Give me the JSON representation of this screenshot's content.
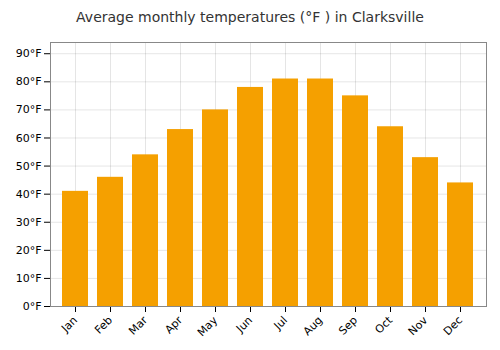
{
  "chart_data": {
    "type": "bar",
    "title": "Average monthly temperatures (°F ) in Clarksville",
    "categories": [
      "Jan",
      "Feb",
      "Mar",
      "Apr",
      "May",
      "Jun",
      "Jul",
      "Aug",
      "Sep",
      "Oct",
      "Nov",
      "Dec"
    ],
    "values": [
      41,
      46,
      54,
      63,
      70,
      78,
      81,
      81,
      75,
      64,
      53,
      44
    ],
    "color": "#F5A000",
    "ylim": [
      0,
      94
    ],
    "yticks": [
      {
        "value": 0,
        "label": "0°F"
      },
      {
        "value": 10,
        "label": "10°F"
      },
      {
        "value": 20,
        "label": "20°F"
      },
      {
        "value": 30,
        "label": "30°F"
      },
      {
        "value": 40,
        "label": "40°F"
      },
      {
        "value": 50,
        "label": "50°F"
      },
      {
        "value": 60,
        "label": "60°F"
      },
      {
        "value": 70,
        "label": "70°F"
      },
      {
        "value": 80,
        "label": "80°F"
      },
      {
        "value": 90,
        "label": "90°F"
      }
    ],
    "grid": true
  }
}
